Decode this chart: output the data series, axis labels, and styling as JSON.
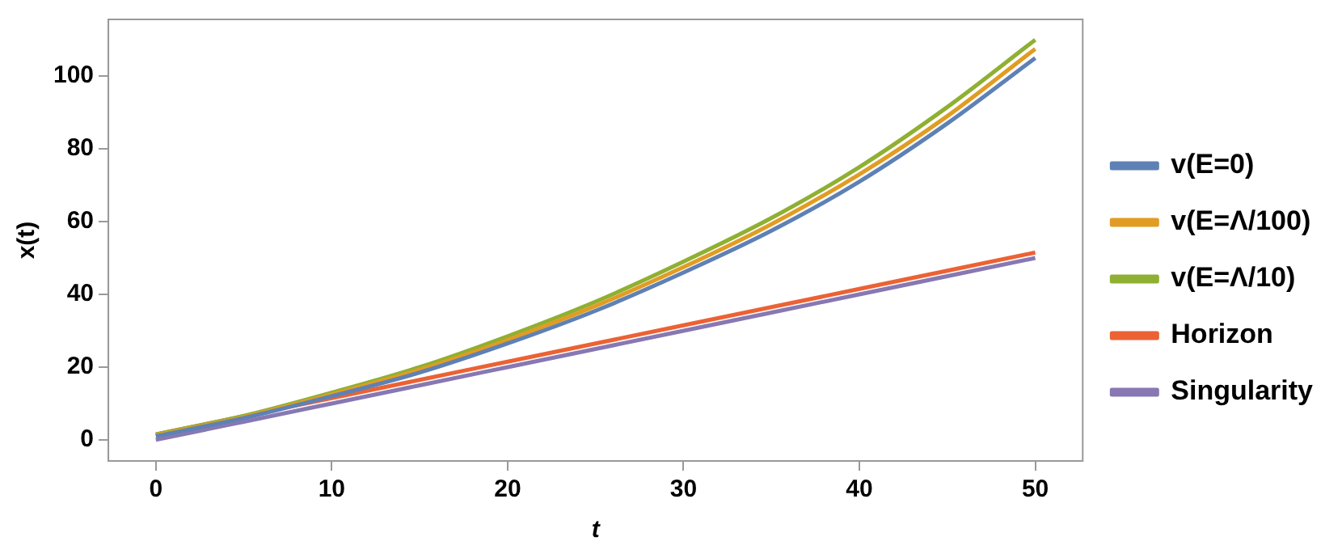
{
  "chart_data": {
    "type": "line",
    "xlabel": "t",
    "ylabel": "x(t)",
    "x": [
      0,
      5,
      10,
      15,
      20,
      25,
      30,
      35,
      40,
      45,
      50
    ],
    "series": [
      {
        "name": "v(E=0)",
        "color": "#5e81b5",
        "values": [
          1,
          6,
          12,
          18.5,
          26.5,
          35.5,
          46,
          57.5,
          71,
          87,
          105
        ]
      },
      {
        "name": "v(E=Λ/100)",
        "color": "#e19c24",
        "values": [
          1.2,
          6.3,
          12.5,
          19.3,
          27.5,
          36.8,
          47.5,
          59.3,
          73,
          89,
          107.5
        ]
      },
      {
        "name": "v(E=Λ/10)",
        "color": "#8fb032",
        "values": [
          1.5,
          6.6,
          13,
          20,
          28.5,
          38,
          49,
          61,
          75,
          91.5,
          110
        ]
      },
      {
        "name": "Horizon",
        "color": "#eb6235",
        "values": [
          1.5,
          6.5,
          11.5,
          16.5,
          21.5,
          26.5,
          31.5,
          36.5,
          41.5,
          46.5,
          51.5
        ]
      },
      {
        "name": "Singularity",
        "color": "#8778b3",
        "values": [
          0,
          5,
          10,
          15,
          20,
          25,
          30,
          35,
          40,
          45,
          50
        ]
      }
    ],
    "xlim": [
      -2.7,
      52.7
    ],
    "ylim": [
      -5.8,
      115.6
    ],
    "xticks": [
      0,
      10,
      20,
      30,
      40,
      50
    ],
    "yticks": [
      0,
      20,
      40,
      60,
      80,
      100
    ],
    "grid": false,
    "legend": "right",
    "marker": "none",
    "line_style": "solid"
  }
}
